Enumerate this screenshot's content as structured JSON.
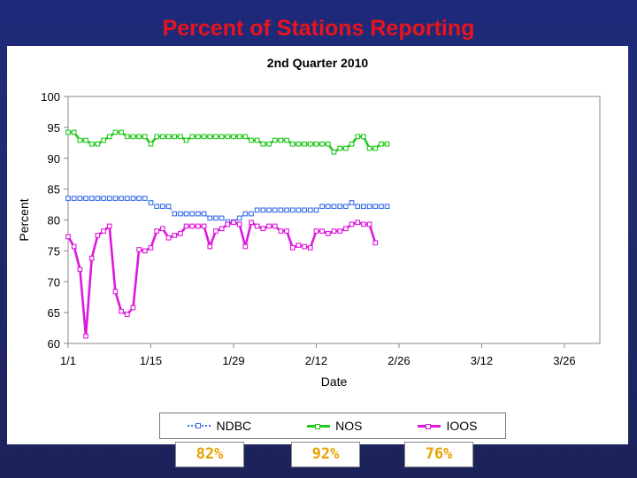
{
  "slide": {
    "title": "Percent of Stations Reporting"
  },
  "chart_data": {
    "type": "line",
    "title": "2nd Quarter 2010",
    "xlabel": "Date",
    "ylabel": "Percent",
    "x_tick_labels": [
      "1/1",
      "1/15",
      "1/29",
      "2/12",
      "2/26",
      "3/12",
      "3/26"
    ],
    "x_range_days": [
      0,
      90
    ],
    "ylim": [
      60,
      100
    ],
    "y_ticks": [
      60,
      65,
      70,
      75,
      80,
      85,
      90,
      95,
      100
    ],
    "grid": false,
    "legend_position": "bottom",
    "series": [
      {
        "name": "NDBC",
        "color": "#3a6ee8",
        "marker": "square-open",
        "line": "dotted",
        "values": [
          83.5,
          83.5,
          83.5,
          83.5,
          83.5,
          83.5,
          83.5,
          83.5,
          83.5,
          83.5,
          83.5,
          83.5,
          83.5,
          83.5,
          82.8,
          82.2,
          82.2,
          82.2,
          81,
          81,
          81,
          81,
          81,
          81,
          80.3,
          80.3,
          80.3,
          79.7,
          79.7,
          80.3,
          81,
          81,
          81.6,
          81.6,
          81.6,
          81.6,
          81.6,
          81.6,
          81.6,
          81.6,
          81.6,
          81.6,
          81.6,
          82.2,
          82.2,
          82.2,
          82.2,
          82.2,
          82.8,
          82.2,
          82.2,
          82.2,
          82.2,
          82.2,
          82.2
        ]
      },
      {
        "name": "NOS",
        "color": "#22c81e",
        "marker": "square-open",
        "line": "solid",
        "values": [
          94.2,
          94.2,
          92.9,
          92.9,
          92.3,
          92.3,
          92.9,
          93.5,
          94.2,
          94.2,
          93.5,
          93.5,
          93.5,
          93.5,
          92.3,
          93.5,
          93.5,
          93.5,
          93.5,
          93.5,
          92.9,
          93.5,
          93.5,
          93.5,
          93.5,
          93.5,
          93.5,
          93.5,
          93.5,
          93.5,
          93.5,
          92.9,
          92.9,
          92.3,
          92.3,
          92.9,
          92.9,
          92.9,
          92.3,
          92.3,
          92.3,
          92.3,
          92.3,
          92.3,
          92.3,
          91,
          91.6,
          91.6,
          92.3,
          93.5,
          93.5,
          91.6,
          91.6,
          92.3,
          92.3
        ]
      },
      {
        "name": "IOOS",
        "color": "#dd18dc",
        "marker": "square-open",
        "line": "solid",
        "values": [
          77.3,
          75.7,
          72,
          61.2,
          73.8,
          77.5,
          78.2,
          79,
          68.4,
          65.2,
          64.7,
          65.8,
          75.2,
          75,
          75.5,
          78.2,
          78.6,
          77.1,
          77.5,
          77.8,
          79,
          79,
          79,
          79,
          75.7,
          78.2,
          78.6,
          79.3,
          79.6,
          79.3,
          75.7,
          79.6,
          79,
          78.6,
          79,
          79,
          78.2,
          78.2,
          75.5,
          75.9,
          75.7,
          75.5,
          78.2,
          78.2,
          77.8,
          78.2,
          78.2,
          78.6,
          79.3,
          79.6,
          79.3,
          79.3,
          76.3
        ]
      }
    ]
  },
  "summary_boxes": [
    "82%",
    "92%",
    "76%"
  ]
}
